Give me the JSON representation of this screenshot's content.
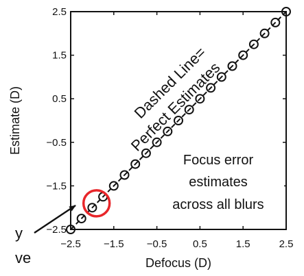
{
  "chart_data": {
    "type": "scatter",
    "title": "",
    "xlabel": "Defocus (D)",
    "ylabel": "Estimate (D)",
    "xlim": [
      -2.5,
      2.5
    ],
    "ylim": [
      -2.5,
      2.5
    ],
    "xticks": [
      "−2.5",
      "−1.5",
      "−0.5",
      "0.5",
      "1.5",
      "2.5"
    ],
    "yticks": [
      "−2.5",
      "−1.5",
      "−0.5",
      "0.5",
      "1.5",
      "2.5"
    ],
    "grid": false,
    "series": [
      {
        "marker": "open-circle",
        "points": [
          {
            "x": -2.5,
            "y": -2.5
          },
          {
            "x": -2.25,
            "y": -2.25
          },
          {
            "x": -2.0,
            "y": -2.0
          },
          {
            "x": -1.75,
            "y": -1.75
          },
          {
            "x": -1.5,
            "y": -1.5
          },
          {
            "x": -1.25,
            "y": -1.25
          },
          {
            "x": -1.0,
            "y": -1.0
          },
          {
            "x": -0.75,
            "y": -0.75
          },
          {
            "x": -0.5,
            "y": -0.5
          },
          {
            "x": -0.25,
            "y": -0.25
          },
          {
            "x": 0.0,
            "y": 0.0
          },
          {
            "x": 0.25,
            "y": 0.25
          },
          {
            "x": 0.5,
            "y": 0.5
          },
          {
            "x": 0.75,
            "y": 0.75
          },
          {
            "x": 1.0,
            "y": 1.0
          },
          {
            "x": 1.25,
            "y": 1.25
          },
          {
            "x": 1.5,
            "y": 1.5
          },
          {
            "x": 1.75,
            "y": 1.75
          },
          {
            "x": 2.0,
            "y": 2.0
          },
          {
            "x": 2.25,
            "y": 2.25
          },
          {
            "x": 2.5,
            "y": 2.5
          }
        ]
      }
    ],
    "reference_line": {
      "style": "dashed",
      "from": [
        -2.5,
        -2.5
      ],
      "to": [
        2.5,
        2.5
      ]
    },
    "highlight": {
      "x": -1.9,
      "y": -1.9,
      "color": "#e8262a"
    },
    "annotations": {
      "diag_line1": "Dashed Line=",
      "diag_line2": "Perfect Estimates",
      "box_line1": "Focus error",
      "box_line2": "estimates",
      "box_line3": "across all blurs",
      "cut_text_1": "y",
      "cut_text_2": "ve"
    }
  }
}
